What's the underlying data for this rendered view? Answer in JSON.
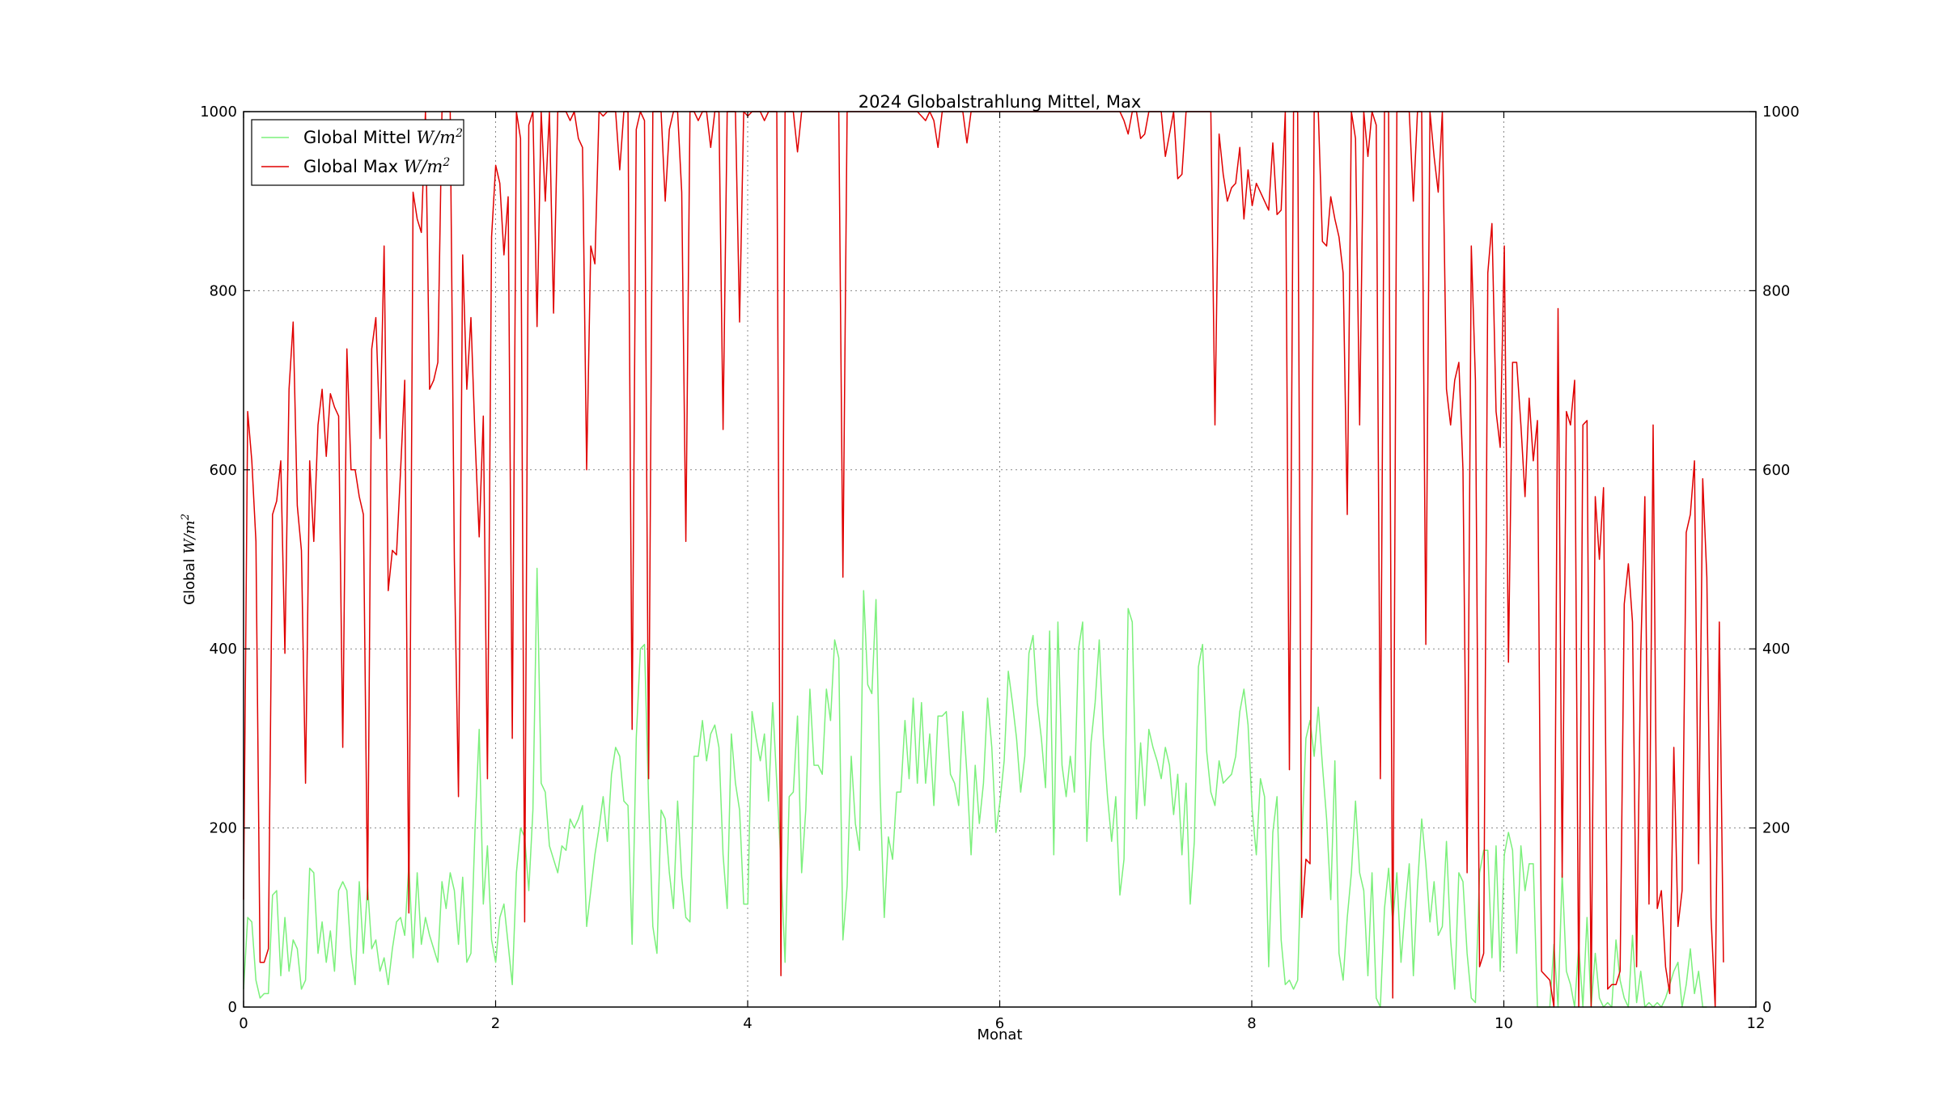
{
  "chart_data": {
    "type": "line",
    "title": "2024 Globalstrahlung Mittel, Max",
    "xlabel": "Monat",
    "ylabel": "Global",
    "ylabel_unit": "W/m",
    "unit_exponent": "2",
    "xlim": [
      0,
      12
    ],
    "ylim": [
      0,
      1000
    ],
    "x_ticks": [
      0,
      2,
      4,
      6,
      8,
      10,
      12
    ],
    "y_ticks": [
      0,
      200,
      400,
      600,
      800,
      1000
    ],
    "grid": true,
    "legend_position": "top-left",
    "series": [
      {
        "name": "Global Mittel",
        "unit": "W/m",
        "color": "#7cf07c",
        "x_step_months": 0.0328,
        "values": [
          20,
          100,
          95,
          30,
          10,
          15,
          15,
          125,
          130,
          35,
          100,
          40,
          75,
          65,
          20,
          30,
          155,
          150,
          60,
          95,
          50,
          85,
          40,
          130,
          140,
          130,
          60,
          25,
          140,
          60,
          135,
          65,
          75,
          40,
          55,
          25,
          65,
          95,
          100,
          80,
          160,
          55,
          150,
          70,
          100,
          80,
          65,
          50,
          140,
          110,
          150,
          130,
          70,
          145,
          50,
          60,
          200,
          310,
          115,
          180,
          75,
          50,
          100,
          115,
          70,
          25,
          150,
          200,
          190,
          130,
          220,
          490,
          250,
          240,
          180,
          165,
          150,
          180,
          175,
          210,
          200,
          210,
          225,
          90,
          130,
          170,
          200,
          235,
          185,
          260,
          290,
          280,
          230,
          225,
          70,
          300,
          400,
          405,
          230,
          90,
          60,
          220,
          210,
          150,
          110,
          230,
          145,
          100,
          95,
          280,
          280,
          320,
          275,
          305,
          315,
          290,
          170,
          110,
          305,
          250,
          220,
          115,
          115,
          330,
          300,
          275,
          305,
          230,
          340,
          250,
          160,
          50,
          235,
          240,
          325,
          150,
          220,
          355,
          270,
          270,
          260,
          355,
          320,
          410,
          390,
          75,
          135,
          280,
          205,
          175,
          465,
          360,
          350,
          455,
          240,
          100,
          190,
          165,
          240,
          240,
          320,
          255,
          345,
          250,
          340,
          250,
          305,
          225,
          325,
          325,
          330,
          260,
          250,
          225,
          330,
          260,
          170,
          270,
          205,
          250,
          345,
          290,
          195,
          230,
          275,
          375,
          340,
          300,
          240,
          280,
          395,
          415,
          340,
          300,
          245,
          420,
          170,
          430,
          270,
          235,
          280,
          240,
          400,
          430,
          185,
          295,
          340,
          410,
          300,
          235,
          185,
          235,
          125,
          165,
          445,
          430,
          210,
          295,
          225,
          310,
          290,
          275,
          255,
          290,
          270,
          215,
          260,
          170,
          250,
          115,
          185,
          380,
          405,
          285,
          240,
          225,
          275,
          250,
          255,
          260,
          280,
          330,
          355,
          315,
          220,
          170,
          255,
          235,
          45,
          195,
          235,
          75,
          25,
          30,
          20,
          30,
          185,
          300,
          320,
          280,
          335,
          270,
          210,
          120,
          275,
          60,
          30,
          100,
          150,
          230,
          150,
          130,
          35,
          150,
          10,
          0,
          110,
          155,
          95,
          150,
          50,
          110,
          160,
          35,
          135,
          210,
          160,
          95,
          140,
          80,
          90,
          185,
          75,
          20,
          150,
          140,
          60,
          10,
          5,
          150,
          175,
          175,
          55,
          180,
          40,
          170,
          195,
          175,
          60,
          180,
          130,
          160,
          160,
          0,
          0,
          0,
          0,
          70,
          0,
          150,
          40,
          25,
          0,
          70,
          0,
          100,
          0,
          60,
          10,
          0,
          5,
          0,
          75,
          30,
          10,
          0,
          80,
          5,
          40,
          0,
          5,
          0,
          5,
          0,
          10,
          25,
          40,
          50,
          0,
          25,
          65,
          15,
          40,
          0,
          0
        ]
      },
      {
        "name": "Global Max",
        "unit": "W/m",
        "color": "#e00000",
        "x_step_months": 0.0328,
        "values": [
          120,
          665,
          610,
          520,
          50,
          50,
          65,
          550,
          565,
          610,
          395,
          690,
          765,
          560,
          510,
          250,
          610,
          520,
          650,
          690,
          615,
          685,
          670,
          660,
          290,
          735,
          600,
          600,
          570,
          550,
          120,
          735,
          770,
          635,
          850,
          465,
          510,
          505,
          600,
          700,
          105,
          910,
          880,
          865,
          1000,
          690,
          700,
          720,
          1000,
          1000,
          1000,
          500,
          235,
          840,
          690,
          770,
          635,
          525,
          660,
          255,
          860,
          940,
          920,
          840,
          905,
          300,
          1000,
          970,
          95,
          985,
          1000,
          760,
          1000,
          900,
          1000,
          775,
          1000,
          1000,
          1000,
          990,
          1000,
          970,
          960,
          600,
          850,
          830,
          1000,
          995,
          1000,
          1000,
          1000,
          935,
          1000,
          1000,
          310,
          980,
          1000,
          990,
          255,
          1000,
          1000,
          1000,
          900,
          980,
          1000,
          1000,
          910,
          520,
          1000,
          1000,
          990,
          1000,
          1000,
          960,
          1000,
          1000,
          645,
          1000,
          1000,
          1000,
          765,
          1000,
          995,
          1000,
          1000,
          1000,
          990,
          1000,
          1000,
          1000,
          35,
          1000,
          1000,
          1000,
          955,
          1000,
          1000,
          1000,
          1000,
          1000,
          1000,
          1000,
          1000,
          1000,
          1000,
          480,
          1000,
          1000,
          1000,
          1000,
          1000,
          1000,
          1000,
          1000,
          1000,
          1000,
          1000,
          1000,
          1000,
          1000,
          1000,
          1000,
          1000,
          1000,
          995,
          990,
          1000,
          990,
          960,
          1000,
          1000,
          1000,
          1000,
          1000,
          1000,
          965,
          1000,
          1000,
          1000,
          1000,
          1000,
          1000,
          1000,
          1000,
          1000,
          1000,
          1000,
          1000,
          1000,
          1000,
          1000,
          1000,
          1000,
          1000,
          1000,
          1000,
          1000,
          1000,
          1000,
          1000,
          1000,
          1000,
          1000,
          1000,
          1000,
          1000,
          1000,
          1000,
          1000,
          1000,
          1000,
          1000,
          1000,
          990,
          975,
          1000,
          1000,
          970,
          975,
          1000,
          1000,
          1000,
          1000,
          950,
          975,
          1000,
          925,
          930,
          1000,
          1000,
          1000,
          1000,
          1000,
          1000,
          1000,
          650,
          975,
          930,
          900,
          915,
          920,
          960,
          880,
          935,
          895,
          920,
          910,
          900,
          890,
          965,
          885,
          890,
          1000,
          265,
          1000,
          1000,
          100,
          165,
          160,
          1000,
          1000,
          855,
          850,
          905,
          880,
          860,
          820,
          550,
          1000,
          970,
          650,
          1000,
          950,
          1000,
          985,
          255,
          1000,
          1000,
          10,
          1000,
          1000,
          1000,
          1000,
          900,
          1000,
          1000,
          405,
          1000,
          950,
          910,
          1000,
          690,
          650,
          700,
          720,
          600,
          150,
          850,
          700,
          45,
          60,
          820,
          875,
          665,
          625,
          850,
          385,
          720,
          720,
          650,
          570,
          680,
          610,
          655,
          40,
          35,
          30,
          0,
          780,
          145,
          665,
          650,
          700,
          0,
          650,
          655,
          0,
          570,
          500,
          580,
          20,
          25,
          25,
          40,
          450,
          495,
          430,
          45,
          395,
          570,
          115,
          650,
          110,
          130,
          45,
          15,
          290,
          90,
          130,
          530,
          550,
          610,
          160,
          590,
          480,
          100,
          0,
          430,
          50
        ]
      }
    ]
  }
}
